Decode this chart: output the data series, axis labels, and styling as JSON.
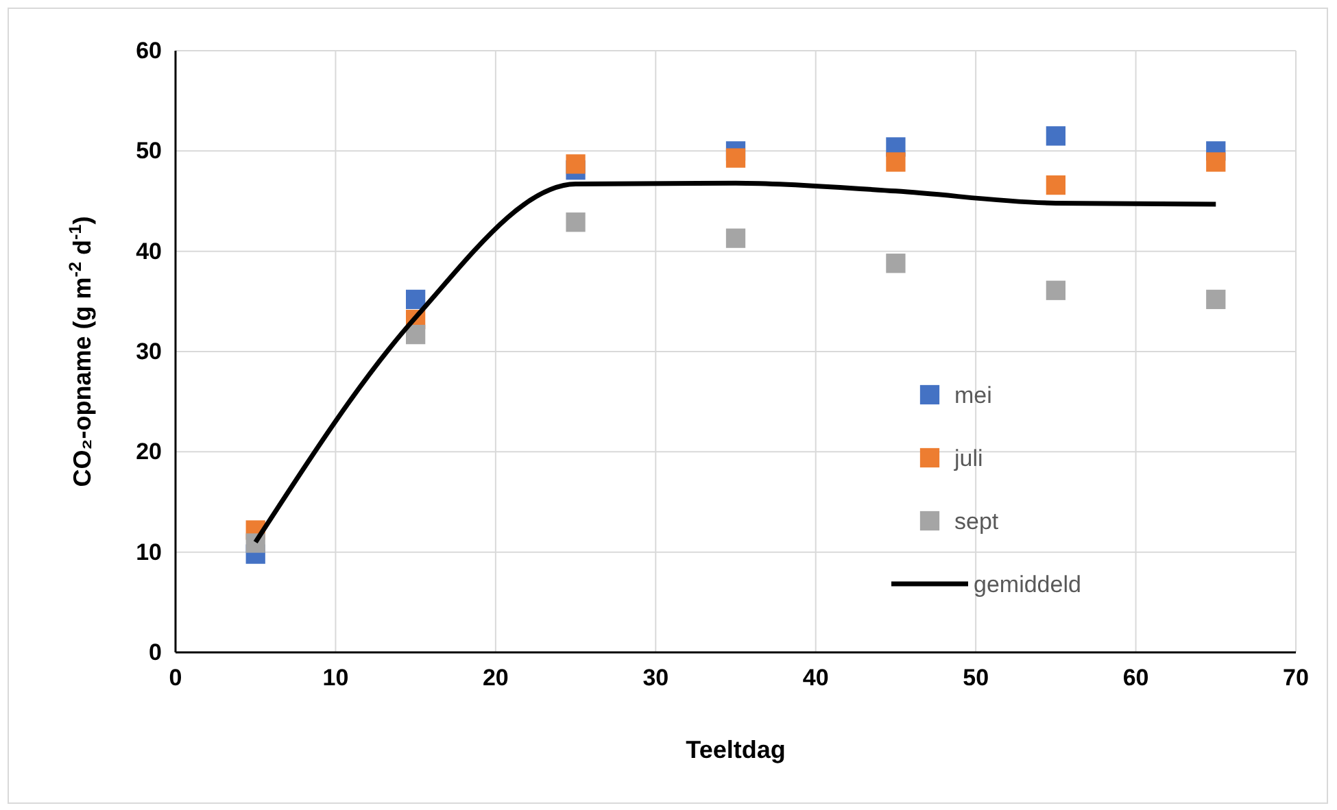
{
  "chart_data": {
    "type": "scatter",
    "xlabel": "Teeltdag",
    "ylabel": "CO₂-opname (g m$^{-2}$ d$^{-1}$)",
    "x": [
      5,
      15,
      25,
      35,
      45,
      55,
      65
    ],
    "xlim": [
      0,
      70
    ],
    "xticks": [
      0,
      10,
      20,
      30,
      40,
      50,
      60,
      70
    ],
    "ylim": [
      0,
      60
    ],
    "yticks": [
      0,
      10,
      20,
      30,
      40,
      50,
      60
    ],
    "grid": true,
    "legend": "bottom right",
    "marker": "square",
    "series": [
      {
        "name": "mei",
        "color": "#4472c4",
        "values": [
          9.8,
          35.2,
          48.1,
          50.0,
          50.4,
          51.5,
          50.0
        ]
      },
      {
        "name": "juli",
        "color": "#ed7d31",
        "values": [
          12.2,
          33.2,
          48.7,
          49.3,
          48.9,
          46.6,
          48.9
        ]
      },
      {
        "name": "sept",
        "color": "#a5a5a5",
        "values": [
          10.9,
          31.7,
          42.9,
          41.3,
          38.8,
          36.1,
          35.2
        ]
      },
      {
        "name": "gemiddeld",
        "type": "line",
        "color": "#000000",
        "line_style": "solid",
        "marker": "none",
        "values": [
          11.0,
          33.4,
          46.7,
          46.8,
          46.0,
          44.8,
          44.7
        ]
      }
    ]
  }
}
